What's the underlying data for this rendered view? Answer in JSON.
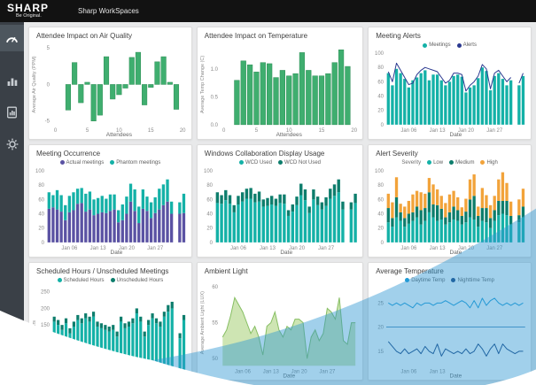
{
  "topbar": {
    "logo": "SHARP",
    "tagline": "Be Original.",
    "app_title": "Sharp WorkSpaces"
  },
  "sidebar": {
    "items": [
      {
        "label": "dashboard",
        "icon": "gauge-icon",
        "active": true
      },
      {
        "label": "analytics",
        "icon": "bar-chart-icon",
        "active": false
      },
      {
        "label": "reports",
        "icon": "report-icon",
        "active": false
      },
      {
        "label": "settings",
        "icon": "gear-icon",
        "active": false
      }
    ]
  },
  "brand": {
    "swoosh_color": "#2E96D2",
    "swoosh_opacity": "0.45"
  },
  "chart_data": [
    {
      "type": "bar",
      "title": "Attendee Impact on Air Quality",
      "xlabel": "Attendees",
      "ylabel": "Average Air Quality (PPM)",
      "xlim": [
        0,
        20
      ],
      "ylim": [
        -5.5,
        5.5
      ],
      "xticks": [
        0,
        5,
        10,
        15,
        20
      ],
      "yticks": [
        5,
        0,
        -5
      ],
      "ytick_labels": [
        "5",
        "0",
        "-5"
      ],
      "x": [
        2,
        3,
        4,
        5,
        6,
        7,
        8,
        9,
        10,
        11,
        12,
        13,
        14,
        15,
        16,
        17,
        18,
        19
      ],
      "values": [
        -3.5,
        3.0,
        -2.5,
        0.3,
        -5.0,
        -4.2,
        3.8,
        -2.0,
        -1.4,
        -0.5,
        3.7,
        4.4,
        -2.8,
        -0.4,
        3.1,
        3.8,
        0.3,
        -3.4
      ],
      "color": "#3FAE6F",
      "stroke": "#2F8F57"
    },
    {
      "type": "bar",
      "title": "Attendee Impact on Temperature",
      "xlabel": "Attendees",
      "ylabel": "Average Temp Change (C)",
      "xlim": [
        0,
        20
      ],
      "ylim": [
        0,
        1.45
      ],
      "xticks": [
        0,
        5,
        10,
        15,
        20
      ],
      "yticks": [
        1.0,
        0.5,
        0.0
      ],
      "ytick_labels": [
        "1.0",
        "0.5",
        "0.0"
      ],
      "x": [
        2,
        3,
        4,
        5,
        6,
        7,
        8,
        9,
        10,
        11,
        12,
        13,
        14,
        15,
        16,
        17,
        18,
        19
      ],
      "values": [
        0.8,
        1.15,
        1.08,
        0.95,
        1.12,
        1.1,
        0.85,
        0.98,
        0.88,
        0.92,
        1.3,
        0.98,
        0.88,
        0.88,
        0.92,
        1.12,
        1.35,
        1.05
      ],
      "color": "#3FAE6F",
      "stroke": "#2F8F57"
    },
    {
      "type": "barline",
      "title": "Meeting Alerts",
      "xlabel": "Date",
      "ylim": [
        0,
        100
      ],
      "yticks": [
        100,
        80,
        60,
        40,
        20,
        0
      ],
      "xtick_idx": [
        {
          "i": 5,
          "label": "Jan 06"
        },
        {
          "i": 12,
          "label": "Jan 13"
        },
        {
          "i": 19,
          "label": "Jan 20"
        },
        {
          "i": 26,
          "label": "Jan 27"
        }
      ],
      "legend": [
        {
          "label": "Meetings",
          "color": "#14B1A7"
        },
        {
          "label": "Alerts",
          "color": "#2B3990"
        }
      ],
      "bar_color": "#14B1A7",
      "line_color": "#2B3990",
      "bars": [
        72,
        55,
        78,
        72,
        64,
        52,
        62,
        66,
        72,
        76,
        62,
        70,
        70,
        62,
        55,
        60,
        68,
        70,
        67,
        45,
        52,
        55,
        65,
        80,
        75,
        48,
        68,
        72,
        64,
        55,
        62,
        null,
        55,
        68
      ],
      "line": [
        74,
        60,
        86,
        76,
        66,
        56,
        58,
        70,
        76,
        80,
        78,
        76,
        74,
        66,
        58,
        62,
        72,
        72,
        70,
        47,
        55,
        60,
        68,
        84,
        78,
        50,
        72,
        76,
        68,
        60,
        66,
        null,
        58,
        72
      ]
    },
    {
      "type": "stacked",
      "title": "Meeting Occurrence",
      "xlabel": "Date",
      "ylim": [
        0,
        100
      ],
      "yticks": [
        100,
        80,
        60,
        40,
        20,
        0
      ],
      "xtick_idx": [
        {
          "i": 5,
          "label": "Jan 06"
        },
        {
          "i": 12,
          "label": "Jan 13"
        },
        {
          "i": 19,
          "label": "Jan 20"
        },
        {
          "i": 26,
          "label": "Jan 27"
        }
      ],
      "legend": [
        {
          "label": "Actual meetings",
          "color": "#5A52A3"
        },
        {
          "label": "Phantom meetings",
          "color": "#14B1A7"
        }
      ],
      "series": [
        {
          "name": "Actual meetings",
          "color": "#5A52A3",
          "values": [
            47,
            49,
            46,
            43,
            31,
            42,
            45,
            54,
            55,
            43,
            46,
            38,
            40,
            42,
            41,
            44,
            46,
            28,
            31,
            40,
            57,
            44,
            27,
            47,
            44,
            34,
            41,
            46,
            52,
            57,
            40,
            null,
            40,
            41
          ]
        },
        {
          "name": "Phantom meetings",
          "color": "#14B1A7",
          "values": [
            23,
            17,
            27,
            23,
            21,
            23,
            25,
            21,
            21,
            25,
            25,
            22,
            22,
            23,
            20,
            23,
            21,
            17,
            22,
            24,
            25,
            30,
            23,
            27,
            20,
            22,
            22,
            29,
            29,
            31,
            17,
            null,
            16,
            27
          ]
        }
      ]
    },
    {
      "type": "stacked",
      "title": "Windows Collaboration Display Usage",
      "xlabel": "Date",
      "ylim": [
        0,
        100
      ],
      "yticks": [
        100,
        80,
        60,
        40,
        20,
        0
      ],
      "xtick_idx": [
        {
          "i": 5,
          "label": "Jan 06"
        },
        {
          "i": 12,
          "label": "Jan 13"
        },
        {
          "i": 19,
          "label": "Jan 20"
        },
        {
          "i": 26,
          "label": "Jan 27"
        }
      ],
      "legend": [
        {
          "label": "WCD Used",
          "color": "#14B1A7"
        },
        {
          "label": "WCD Not Used",
          "color": "#0D7D6C"
        }
      ],
      "series": [
        {
          "name": "WCD Used",
          "color": "#14B1A7",
          "values": [
            55,
            54,
            59,
            54,
            42,
            53,
            57,
            61,
            61,
            56,
            57,
            50,
            51,
            53,
            51,
            55,
            54,
            37,
            43,
            52,
            66,
            59,
            41,
            60,
            52,
            46,
            51,
            61,
            65,
            70,
            46,
            null,
            46,
            55
          ]
        },
        {
          "name": "WCD Not Used",
          "color": "#0D7D6C",
          "values": [
            15,
            12,
            14,
            12,
            10,
            12,
            13,
            14,
            15,
            12,
            14,
            10,
            11,
            12,
            10,
            12,
            13,
            8,
            10,
            12,
            16,
            15,
            9,
            14,
            12,
            10,
            12,
            14,
            16,
            18,
            11,
            null,
            10,
            13
          ]
        }
      ]
    },
    {
      "type": "stacked",
      "title": "Alert Severity",
      "xlabel": "Date",
      "legend_title": "Severity",
      "ylim": [
        0,
        100
      ],
      "yticks": [
        100,
        80,
        60,
        40,
        20,
        0
      ],
      "xtick_idx": [
        {
          "i": 5,
          "label": "Jan 06"
        },
        {
          "i": 12,
          "label": "Jan 13"
        },
        {
          "i": 19,
          "label": "Jan 20"
        },
        {
          "i": 26,
          "label": "Jan 27"
        }
      ],
      "legend": [
        {
          "label": "Low",
          "color": "#14B1A7"
        },
        {
          "label": "Medium",
          "color": "#0D7D6C"
        },
        {
          "label": "High",
          "color": "#F2A33A"
        }
      ],
      "series": [
        {
          "name": "Low",
          "color": "#14B1A7",
          "values": [
            28,
            22,
            35,
            30,
            22,
            26,
            30,
            35,
            25,
            30,
            42,
            35,
            30,
            32,
            25,
            28,
            32,
            30,
            25,
            28,
            35,
            32,
            22,
            30,
            28,
            20,
            30,
            38,
            40,
            38,
            25,
            null,
            28,
            35
          ]
        },
        {
          "name": "Medium",
          "color": "#0D7D6C",
          "values": [
            20,
            12,
            28,
            12,
            12,
            14,
            12,
            15,
            20,
            18,
            28,
            18,
            22,
            15,
            10,
            14,
            18,
            15,
            12,
            15,
            25,
            33,
            15,
            18,
            20,
            14,
            15,
            20,
            18,
            20,
            12,
            null,
            10,
            15
          ]
        },
        {
          "name": "High",
          "color": "#F2A33A",
          "values": [
            20,
            22,
            28,
            12,
            16,
            18,
            25,
            22,
            25,
            20,
            20,
            28,
            22,
            18,
            20,
            25,
            22,
            18,
            12,
            18,
            28,
            30,
            13,
            28,
            18,
            18,
            20,
            30,
            40,
            25,
            20,
            null,
            22,
            25
          ]
        }
      ]
    },
    {
      "type": "stacked",
      "title": "Scheduled Hours / Unscheduled Meetings",
      "ylabel": "# of Hours",
      "ylim": [
        0,
        260
      ],
      "yticks": [
        250,
        200,
        150
      ],
      "ytick_labels": [
        "250",
        "200",
        "150"
      ],
      "legend": [
        {
          "label": "Scheduled Hours",
          "color": "#14B1A7"
        },
        {
          "label": "Unscheduled Hours",
          "color": "#0D7D6C"
        }
      ],
      "series": [
        {
          "name": "Scheduled Hours",
          "color": "#14B1A7",
          "values": [
            160,
            150,
            135,
            155,
            125,
            145,
            165,
            155,
            170,
            160,
            175,
            145,
            140,
            135,
            130,
            135,
            115,
            160,
            140,
            145,
            155,
            185,
            160,
            115,
            150,
            170,
            155,
            145,
            175,
            190,
            200,
            null,
            110,
            165
          ]
        },
        {
          "name": "Unscheduled Hours",
          "color": "#0D7D6C",
          "values": [
            15,
            15,
            15,
            15,
            15,
            15,
            15,
            15,
            15,
            15,
            15,
            15,
            15,
            15,
            15,
            15,
            15,
            15,
            15,
            15,
            15,
            15,
            15,
            15,
            15,
            15,
            15,
            15,
            15,
            20,
            20,
            null,
            15,
            15
          ]
        }
      ]
    },
    {
      "type": "area",
      "title": "Ambient Light",
      "xlabel": "Date",
      "ylabel": "Average Ambient Light (LUX)",
      "ylim": [
        49,
        61
      ],
      "yticks": [
        60,
        55,
        50
      ],
      "ytick_labels": [
        "60",
        "55",
        "50"
      ],
      "xtick_idx": [
        {
          "i": 5,
          "label": "Jan 06"
        },
        {
          "i": 12,
          "label": "Jan 13"
        },
        {
          "i": 19,
          "label": "Jan 20"
        },
        {
          "i": 26,
          "label": "Jan 27"
        }
      ],
      "fill": "#CBE4AF",
      "stroke": "#86BE62",
      "values": [
        53,
        54,
        56,
        58.5,
        57.5,
        56.5,
        55,
        53.5,
        54.5,
        53,
        50.5,
        54.5,
        55,
        56.5,
        54,
        53,
        54.5,
        54,
        55.5,
        55.5,
        55,
        50,
        53,
        54,
        52.5,
        53.5,
        57,
        56.5,
        55.5,
        58.5,
        52.5,
        52,
        55,
        55
      ]
    },
    {
      "type": "lines",
      "title": "Average Temperature",
      "xlabel": "Date",
      "ylim": [
        12,
        28
      ],
      "yticks": [
        25,
        20,
        15
      ],
      "ytick_labels": [
        "25",
        "20",
        "15"
      ],
      "xtick_idx": [
        {
          "i": 5,
          "label": "Jan 06"
        },
        {
          "i": 12,
          "label": "Jan 13"
        }
      ],
      "hline": 20,
      "hline_color": "#1B6FAE",
      "legend": [
        {
          "label": "Daytime Temp",
          "color": "#1E9CD7"
        },
        {
          "label": "Nighttime Temp",
          "color": "#17407E"
        }
      ],
      "series": [
        {
          "name": "Daytime Temp",
          "color": "#1E9CD7",
          "values": [
            25,
            24.5,
            25,
            24.5,
            25,
            24.5,
            24,
            25,
            24.5,
            25,
            25,
            24.5,
            25,
            25,
            25.5,
            25,
            24.5,
            25,
            25.5,
            25,
            24,
            25.5,
            24,
            26,
            24.5,
            25.5,
            26,
            25,
            24.5,
            25,
            24.5,
            25,
            24.5,
            25
          ]
        },
        {
          "name": "Nighttime Temp",
          "color": "#17407E",
          "values": [
            17,
            16,
            15,
            14.5,
            15.5,
            14.5,
            15,
            15.5,
            14.5,
            16,
            15,
            14.5,
            16.5,
            14,
            15.5,
            15,
            14.5,
            15,
            14.5,
            15.5,
            14.5,
            15,
            16.5,
            15.5,
            14,
            15.5,
            16.5,
            14.5,
            16.5,
            15.5,
            15,
            14.5,
            15,
            15
          ]
        }
      ]
    }
  ]
}
